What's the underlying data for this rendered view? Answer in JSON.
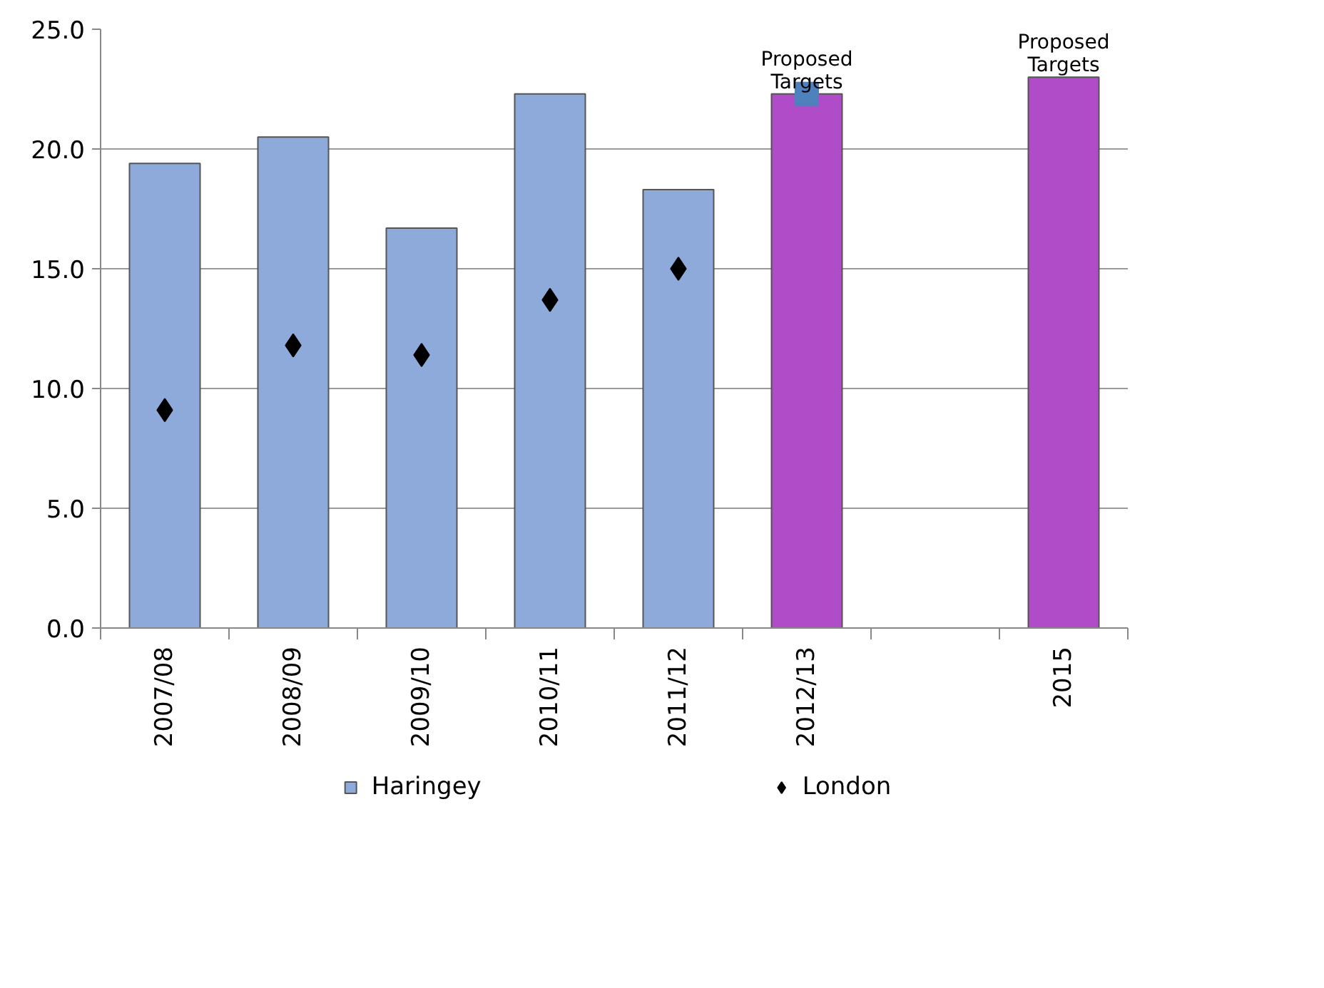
{
  "chart_data": {
    "type": "bar",
    "categories": [
      "2007/08",
      "2008/09",
      "2009/10",
      "2010/11",
      "2011/12",
      "2012/13",
      null,
      "2015"
    ],
    "series": [
      {
        "name": "Haringey",
        "color": "#8eaadb",
        "colors": [
          "#8eaadb",
          "#8eaadb",
          "#8eaadb",
          "#8eaadb",
          "#8eaadb",
          "#b04cc8",
          null,
          "#b04cc8"
        ],
        "values": [
          19.4,
          20.5,
          16.7,
          22.3,
          18.3,
          22.3,
          null,
          23.0
        ]
      },
      {
        "name": "London",
        "type": "scatter",
        "marker": "diamond",
        "color": "#000000",
        "values": [
          9.1,
          11.8,
          11.4,
          13.7,
          15.0,
          null,
          null,
          null
        ]
      },
      {
        "type": "scatter",
        "marker": "square",
        "color": "#4f81bd",
        "values": [
          null,
          null,
          null,
          null,
          null,
          22.3,
          null,
          null
        ]
      }
    ],
    "ylim": [
      0,
      25
    ],
    "yticks": [
      {
        "value": 0,
        "label": "0.0"
      },
      {
        "value": 5,
        "label": "5.0"
      },
      {
        "value": 10,
        "label": "10.0"
      },
      {
        "value": 15,
        "label": "15.0"
      },
      {
        "value": 20,
        "label": "20.0"
      },
      {
        "value": 25,
        "label": "25.0"
      }
    ],
    "grid": "y",
    "legend": "bottom",
    "annotations": [
      {
        "text": "Proposed Targets",
        "x": "2012/13",
        "y": 22.3
      },
      {
        "text": "Proposed Targets",
        "x": "2015",
        "y": 23.0
      }
    ]
  }
}
